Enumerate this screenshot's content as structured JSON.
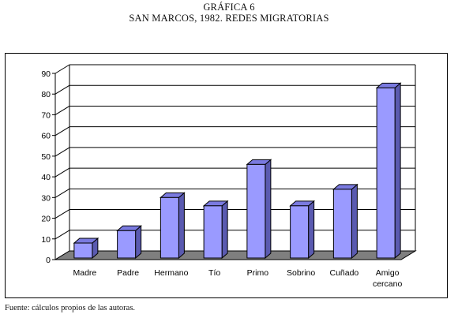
{
  "header": {
    "line1": "GRÁFICA 6",
    "line2": "SAN MARCOS, 1982. REDES MIGRATORIAS"
  },
  "footer": {
    "source": "Fuente: cálculos propios de las autoras."
  },
  "colors": {
    "bar_front": "#9a9aff",
    "bar_side": "#5a5ab0",
    "bar_top": "#7a7ae0",
    "floor": "#7f7f7f",
    "gridline": "#000000"
  },
  "chart_data": {
    "type": "bar",
    "three_d": true,
    "categories": [
      "Madre",
      "Padre",
      "Hermano",
      "Tío",
      "Primo",
      "Sobrino",
      "Cuñado",
      "Amigo\ncercano"
    ],
    "values": [
      8,
      14,
      30,
      26,
      46,
      26,
      34,
      83
    ],
    "ylim": [
      0,
      90
    ],
    "yticks": [
      0,
      10,
      20,
      30,
      40,
      50,
      60,
      70,
      80,
      90
    ],
    "grid": true,
    "legend": "none"
  }
}
